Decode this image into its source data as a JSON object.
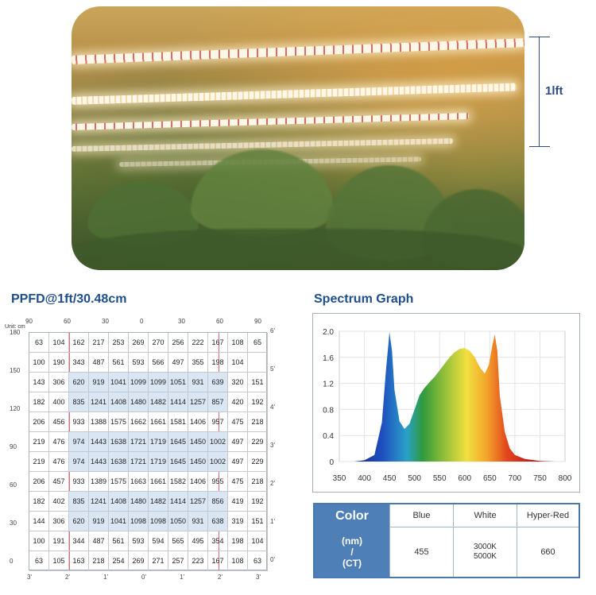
{
  "photo": {
    "scale_label": "1lft"
  },
  "ppfd": {
    "title": "PPFD@1ft/30.48cm",
    "unit_label": "Unit: cm",
    "top_ticks": [
      "90",
      "60",
      "30",
      "0",
      "30",
      "60",
      "90"
    ],
    "left_ticks": [
      "180",
      "150",
      "120",
      "90",
      "60",
      "30",
      "0"
    ],
    "right_ticks": [
      "6'",
      "5'",
      "4'",
      "3'",
      "2'",
      "1'",
      "0'"
    ],
    "bottom_ticks": [
      "3'",
      "2'",
      "1'",
      "0'",
      "1'",
      "2'",
      "3'"
    ],
    "rows": [
      [
        "63",
        "104",
        "162",
        "217",
        "253",
        "269",
        "270",
        "256",
        "222",
        "167",
        "108",
        "65"
      ],
      [
        "100",
        "190",
        "343",
        "487",
        "561",
        "593",
        "566",
        "497",
        "355",
        "198",
        "104",
        ""
      ],
      [
        "143",
        "306",
        "620",
        "919",
        "1041",
        "1099",
        "1099",
        "1051",
        "931",
        "639",
        "320",
        "151"
      ],
      [
        "182",
        "400",
        "835",
        "1241",
        "1408",
        "1480",
        "1482",
        "1414",
        "1257",
        "857",
        "420",
        "192"
      ],
      [
        "206",
        "456",
        "933",
        "1388",
        "1575",
        "1662",
        "1661",
        "1581",
        "1406",
        "957",
        "475",
        "218"
      ],
      [
        "219",
        "476",
        "974",
        "1443",
        "1638",
        "1721",
        "1719",
        "1645",
        "1450",
        "1002",
        "497",
        "229"
      ],
      [
        "219",
        "476",
        "974",
        "1443",
        "1638",
        "1721",
        "1719",
        "1645",
        "1450",
        "1002",
        "497",
        "229"
      ],
      [
        "206",
        "457",
        "933",
        "1389",
        "1575",
        "1663",
        "1661",
        "1582",
        "1406",
        "955",
        "475",
        "218"
      ],
      [
        "182",
        "402",
        "835",
        "1241",
        "1408",
        "1480",
        "1482",
        "1414",
        "1257",
        "856",
        "419",
        "192"
      ],
      [
        "144",
        "306",
        "620",
        "919",
        "1041",
        "1098",
        "1098",
        "1050",
        "931",
        "638",
        "319",
        "151"
      ],
      [
        "100",
        "191",
        "344",
        "487",
        "561",
        "593",
        "594",
        "565",
        "495",
        "354",
        "198",
        "104"
      ],
      [
        "63",
        "105",
        "163",
        "218",
        "254",
        "269",
        "271",
        "257",
        "223",
        "167",
        "108",
        "63"
      ]
    ]
  },
  "chart_data": {
    "type": "area",
    "title": "Spectrum Graph",
    "xlabel": "",
    "ylabel": "",
    "xlim": [
      350,
      800
    ],
    "ylim": [
      0,
      2.0
    ],
    "x_ticks": [
      "350",
      "400",
      "450",
      "500",
      "550",
      "600",
      "650",
      "700",
      "750",
      "800"
    ],
    "y_ticks": [
      "0",
      "0.4",
      "0.8",
      "1.2",
      "1.6",
      "2.0"
    ],
    "x": [
      380,
      400,
      420,
      435,
      443,
      450,
      455,
      460,
      470,
      480,
      490,
      500,
      510,
      520,
      530,
      540,
      550,
      560,
      570,
      580,
      590,
      600,
      610,
      620,
      630,
      640,
      648,
      655,
      660,
      665,
      670,
      680,
      690,
      700,
      720,
      750,
      780
    ],
    "values": [
      0,
      0.02,
      0.1,
      0.6,
      1.4,
      1.98,
      1.7,
      1.1,
      0.62,
      0.5,
      0.58,
      0.8,
      1.02,
      1.13,
      1.22,
      1.3,
      1.4,
      1.5,
      1.6,
      1.68,
      1.73,
      1.74,
      1.7,
      1.6,
      1.45,
      1.35,
      1.48,
      1.78,
      1.95,
      1.7,
      1.0,
      0.45,
      0.2,
      0.1,
      0.04,
      0.01,
      0
    ]
  },
  "color_table": {
    "header": "Color",
    "row_label_line1": "(nm)",
    "row_label_line2": "/",
    "row_label_line3": "(CT)",
    "columns": [
      "Blue",
      "White",
      "Hyper-Red"
    ],
    "values": [
      "455",
      "3000K",
      "5000K",
      "660"
    ]
  }
}
